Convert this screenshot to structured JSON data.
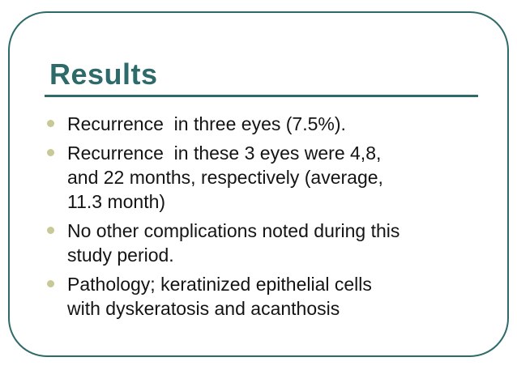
{
  "slide": {
    "title": "Results",
    "colors": {
      "accent": "#2e6a6a",
      "bullet": "#c9c897",
      "text": "#141414",
      "background": "#ffffff"
    },
    "bullets": [
      {
        "text": "Recurrence  in three eyes (7.5%)."
      },
      {
        "text": "Recurrence  in these 3 eyes were 4,8,\nand 22 months, respectively (average,\n11.3 month)"
      },
      {
        "text": "No other complications noted during this\nstudy period."
      },
      {
        "text": "Pathology; keratinized epithelial cells\nwith dyskeratosis and acanthosis"
      }
    ]
  }
}
